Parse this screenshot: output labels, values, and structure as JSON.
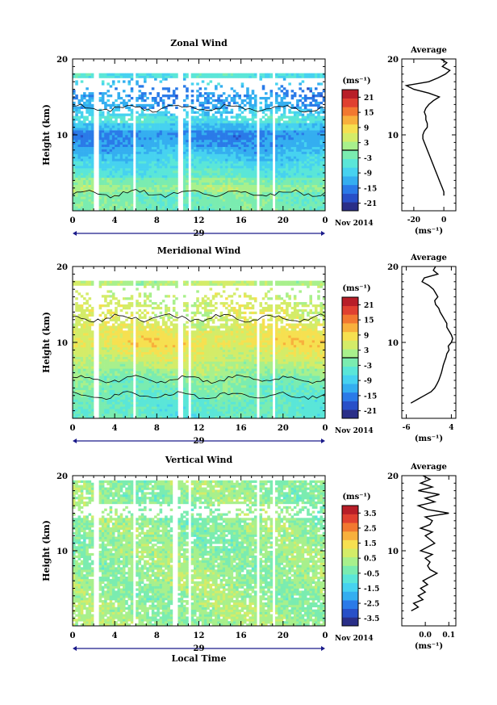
{
  "panels": [
    {
      "title": "Zonal Wind",
      "avg_title": "Average",
      "ylabel": "Height (km)",
      "date_label": "Nov 2014",
      "day_label": "29",
      "units": "(ms⁻¹)",
      "cbar_ticks": [
        "21",
        "15",
        "9",
        "3",
        "-3",
        "-9",
        "-15",
        "-21"
      ],
      "avg_xticks": [
        "-20",
        "0"
      ]
    },
    {
      "title": "Meridional Wind",
      "avg_title": "Average",
      "ylabel": "Height (km)",
      "date_label": "Nov 2014",
      "day_label": "29",
      "units": "(ms⁻¹)",
      "cbar_ticks": [
        "21",
        "15",
        "9",
        "3",
        "-3",
        "-9",
        "-15",
        "-21"
      ],
      "avg_xticks": [
        "-6",
        "4"
      ]
    },
    {
      "title": "Vertical Wind",
      "avg_title": "Average",
      "ylabel": "Height (km)",
      "date_label": "Nov 2014",
      "day_label": "29",
      "units": "(ms⁻¹)",
      "cbar_ticks": [
        "3.5",
        "2.5",
        "1.5",
        "0.5",
        "-0.5",
        "-1.5",
        "-2.5",
        "-3.5"
      ],
      "avg_xticks": [
        "0.0",
        "0.1"
      ],
      "xlabel": "Local Time"
    }
  ],
  "colors": {
    "scale": [
      "#2a2f88",
      "#2850c8",
      "#2a7ae8",
      "#34aef0",
      "#46d2f0",
      "#5ae6d8",
      "#7aecb0",
      "#a8f08c",
      "#d4ec68",
      "#f6e050",
      "#f8b03c",
      "#f27830",
      "#e04030",
      "#b81e28"
    ],
    "contour": "#000000",
    "axis_arrow": "#1a1a8a"
  },
  "chart_data": [
    {
      "type": "heatmap",
      "title": "Zonal Wind",
      "ylabel": "Height (km)",
      "x_ticks": [
        "0",
        "4",
        "8",
        "12",
        "16",
        "20",
        "0"
      ],
      "y_ticks": [
        "20",
        "10"
      ],
      "xlim": [
        0,
        24
      ],
      "ylim": [
        0,
        20
      ],
      "colorbar_range": [
        -24,
        24
      ],
      "colorbar_units": "(ms⁻¹)",
      "data_gaps_hours": [
        [
          2.1,
          2.5
        ],
        [
          5.8,
          6.1
        ],
        [
          10.0,
          10.4
        ],
        [
          10.9,
          11.2
        ],
        [
          17.5,
          17.8
        ],
        [
          19.0,
          19.3
        ]
      ],
      "profile_rows": [
        {
          "z": 18,
          "v": -6
        },
        {
          "z": 17,
          "v": -9
        },
        {
          "z": 16,
          "v": -14
        },
        {
          "z": 14,
          "v": -13
        },
        {
          "z": 13,
          "v": -9
        },
        {
          "z": 12,
          "v": -6
        },
        {
          "z": 11,
          "v": -10
        },
        {
          "z": 10,
          "v": -14
        },
        {
          "z": 9,
          "v": -13
        },
        {
          "z": 8,
          "v": -11
        },
        {
          "z": 7,
          "v": -9
        },
        {
          "z": 6,
          "v": -7
        },
        {
          "z": 5,
          "v": -5
        },
        {
          "z": 4,
          "v": -1
        },
        {
          "z": 3,
          "v": 1
        },
        {
          "z": 2,
          "v": -2
        }
      ],
      "average": {
        "xlim": [
          -28,
          8
        ],
        "z": [
          20,
          19.5,
          19,
          18.5,
          18,
          17.5,
          17,
          16.5,
          16,
          15.5,
          15,
          14.5,
          14,
          13.5,
          13,
          12.5,
          12,
          11.5,
          11,
          10.5,
          10,
          9.5,
          9,
          8.5,
          8,
          7.5,
          7,
          6.5,
          6,
          5.5,
          5,
          4.5,
          4,
          3.5,
          3,
          2.5,
          2
        ],
        "values": [
          -2,
          2,
          -1,
          4,
          1,
          -4,
          -10,
          -25,
          -20,
          -10,
          -3,
          -7,
          -10,
          -12,
          -13,
          -12,
          -12,
          -11,
          -11,
          -13,
          -14,
          -14,
          -13,
          -12,
          -11,
          -10,
          -9,
          -8,
          -7,
          -6,
          -5,
          -4,
          -3,
          -2,
          -1,
          0,
          0
        ]
      }
    },
    {
      "type": "heatmap",
      "title": "Meridional Wind",
      "ylabel": "Height (km)",
      "x_ticks": [
        "0",
        "4",
        "8",
        "12",
        "16",
        "20",
        "0"
      ],
      "y_ticks": [
        "20",
        "10"
      ],
      "xlim": [
        0,
        24
      ],
      "ylim": [
        0,
        20
      ],
      "colorbar_range": [
        -24,
        24
      ],
      "colorbar_units": "(ms⁻¹)",
      "data_gaps_hours": [
        [
          2.1,
          2.5
        ],
        [
          5.8,
          6.1
        ],
        [
          10.0,
          10.4
        ],
        [
          10.9,
          11.2
        ],
        [
          17.5,
          17.8
        ],
        [
          19.0,
          19.3
        ]
      ],
      "profile_rows": [
        {
          "z": 18,
          "v": 3
        },
        {
          "z": 17,
          "v": 4
        },
        {
          "z": 16,
          "v": 4
        },
        {
          "z": 14,
          "v": 5
        },
        {
          "z": 13,
          "v": 5
        },
        {
          "z": 12,
          "v": 6
        },
        {
          "z": 11,
          "v": 7
        },
        {
          "z": 10,
          "v": 8
        },
        {
          "z": 9,
          "v": 6
        },
        {
          "z": 8,
          "v": 5
        },
        {
          "z": 7,
          "v": 3
        },
        {
          "z": 6,
          "v": 1
        },
        {
          "z": 5,
          "v": -1
        },
        {
          "z": 4,
          "v": -2
        },
        {
          "z": 3,
          "v": -3
        },
        {
          "z": 2,
          "v": -4
        }
      ],
      "average": {
        "xlim": [
          -7,
          5
        ],
        "z": [
          20,
          19.5,
          19,
          18.5,
          18,
          17.5,
          17,
          16.5,
          16,
          15.5,
          15,
          14.5,
          14,
          13.5,
          13,
          12.5,
          12,
          11.5,
          11,
          10.5,
          10,
          9.5,
          9,
          8.5,
          8,
          7.5,
          7,
          6.5,
          6,
          5.5,
          5,
          4.5,
          4,
          3.5,
          3,
          2.5,
          2
        ],
        "values": [
          0.5,
          0,
          1,
          -2,
          -2.5,
          -1,
          0,
          0.5,
          1,
          0.3,
          0.5,
          1.2,
          1.5,
          2,
          2.5,
          3,
          3,
          3.5,
          4,
          4.3,
          4,
          3.3,
          3.5,
          3,
          2.8,
          2.5,
          2.2,
          2,
          1.8,
          1.5,
          1.2,
          0.8,
          0.3,
          -0.5,
          -2,
          -3.5,
          -5
        ]
      }
    },
    {
      "type": "heatmap",
      "title": "Vertical Wind",
      "ylabel": "Height (km)",
      "xlabel": "Local Time",
      "x_ticks": [
        "0",
        "4",
        "8",
        "12",
        "16",
        "20",
        "0"
      ],
      "y_ticks": [
        "20",
        "10"
      ],
      "xlim": [
        0,
        24
      ],
      "ylim": [
        0,
        20
      ],
      "colorbar_range": [
        -4,
        4
      ],
      "colorbar_units": "(ms⁻¹)",
      "data_gaps_hours": [
        [
          2.1,
          2.5
        ],
        [
          5.8,
          6.1
        ],
        [
          9.6,
          9.9
        ],
        [
          10.9,
          11.2
        ],
        [
          17.5,
          17.8
        ],
        [
          19.0,
          19.3
        ]
      ],
      "profile_rows": [
        {
          "z": 18,
          "v": 0.1
        },
        {
          "z": 17,
          "v": 0.0
        },
        {
          "z": 16,
          "v": 0.1
        },
        {
          "z": 15,
          "v": 0.0
        },
        {
          "z": 14,
          "v": 0.0
        },
        {
          "z": 13,
          "v": 0.1
        },
        {
          "z": 12,
          "v": 0.0
        },
        {
          "z": 11,
          "v": 0.0
        },
        {
          "z": 10,
          "v": 0.1
        },
        {
          "z": 9,
          "v": 0.1
        },
        {
          "z": 8,
          "v": 0.1
        },
        {
          "z": 7,
          "v": 0.2
        },
        {
          "z": 6,
          "v": 0.2
        },
        {
          "z": 5,
          "v": 0.2
        },
        {
          "z": 4,
          "v": 0.1
        },
        {
          "z": 3,
          "v": 0.3
        },
        {
          "z": 2,
          "v": 0.2
        }
      ],
      "average": {
        "xlim": [
          -0.1,
          0.13
        ],
        "z": [
          20,
          19.5,
          19,
          18.5,
          18,
          17.5,
          17,
          16.5,
          16,
          15.5,
          15,
          14.5,
          14,
          13.5,
          13,
          12.5,
          12,
          11.5,
          11,
          10.5,
          10,
          9.5,
          9,
          8.5,
          8,
          7.5,
          7,
          6.5,
          6,
          5.5,
          5,
          4.5,
          4,
          3.5,
          3,
          2.5,
          2
        ],
        "values": [
          -0.01,
          0.02,
          -0.02,
          0.03,
          -0.03,
          0.06,
          0.0,
          0.04,
          -0.03,
          0.01,
          0.1,
          0.0,
          0.03,
          0.02,
          -0.02,
          0.03,
          0.0,
          0.02,
          0.04,
          0.01,
          -0.02,
          0.03,
          0.0,
          0.02,
          0.01,
          0.02,
          0.05,
          0.02,
          -0.01,
          0.01,
          -0.02,
          0.0,
          -0.03,
          -0.01,
          -0.05,
          -0.03,
          -0.06
        ]
      }
    }
  ]
}
